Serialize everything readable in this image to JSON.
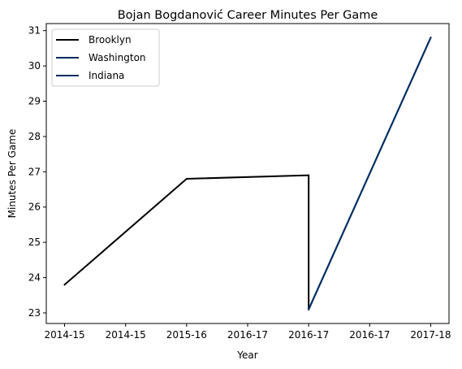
{
  "chart_data": {
    "type": "line",
    "title": "Bojan Bogdanović Career Minutes Per Game",
    "xlabel": "Year",
    "ylabel": "Minutes Per Game",
    "xlim": [
      -0.3,
      6.3
    ],
    "ylim": [
      22.7,
      31.2
    ],
    "x_ticks": [
      {
        "pos": 0,
        "label": "2014-15"
      },
      {
        "pos": 1,
        "label": "2014-15"
      },
      {
        "pos": 2,
        "label": "2015-16"
      },
      {
        "pos": 3,
        "label": "2016-17"
      },
      {
        "pos": 4,
        "label": "2016-17"
      },
      {
        "pos": 5,
        "label": "2016-17"
      },
      {
        "pos": 6,
        "label": "2017-18"
      }
    ],
    "y_ticks": [
      23,
      24,
      25,
      26,
      27,
      28,
      29,
      30,
      31
    ],
    "grid": false,
    "legend": "top-left",
    "series": [
      {
        "name": "Brooklyn",
        "color": "#000000",
        "x": [
          0,
          2,
          4,
          4
        ],
        "y": [
          23.8,
          26.8,
          26.9,
          23.1
        ]
      },
      {
        "name": "Washington",
        "color": "#002B5C",
        "x": [
          4,
          6
        ],
        "y": [
          23.1,
          30.8
        ]
      },
      {
        "name": "Indiana",
        "color": "#002D62",
        "x": [
          4,
          6
        ],
        "y": [
          23.1,
          30.8
        ]
      }
    ]
  }
}
